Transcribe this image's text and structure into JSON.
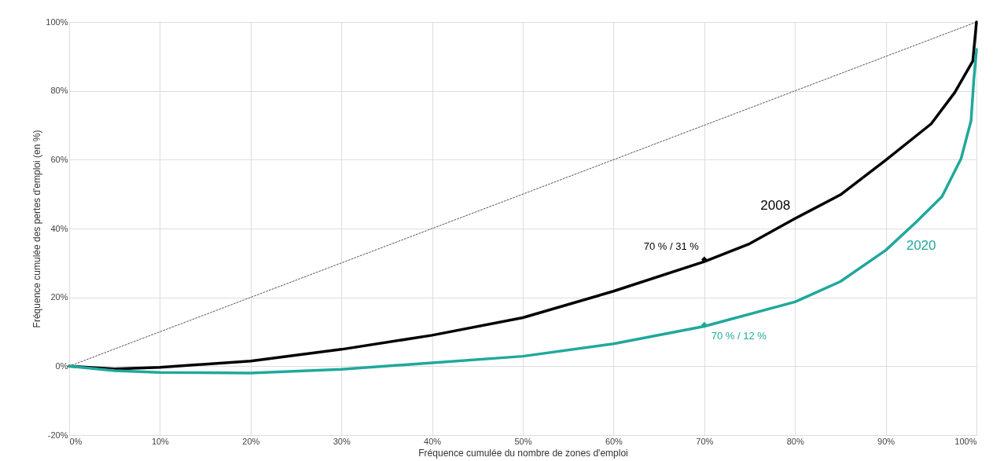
{
  "chart_data": {
    "type": "line",
    "xlabel": "Fréquence cumulée du nombre de zones d'emploi",
    "ylabel": "Fréquence cumulée des pertes d'emploi (en %)",
    "xlim": [
      0,
      100
    ],
    "ylim": [
      -20,
      100
    ],
    "xticks": [
      {
        "value": 0,
        "label": "0%"
      },
      {
        "value": 10,
        "label": "10%"
      },
      {
        "value": 20,
        "label": "20%"
      },
      {
        "value": 30,
        "label": "30%"
      },
      {
        "value": 40,
        "label": "40%"
      },
      {
        "value": 50,
        "label": "50%"
      },
      {
        "value": 60,
        "label": "60%"
      },
      {
        "value": 70,
        "label": "70%"
      },
      {
        "value": 80,
        "label": "80%"
      },
      {
        "value": 90,
        "label": "90%"
      },
      {
        "value": 100,
        "label": "100%"
      }
    ],
    "yticks": [
      {
        "value": -20,
        "label": "-20%"
      },
      {
        "value": 0,
        "label": "0%"
      },
      {
        "value": 20,
        "label": "20%"
      },
      {
        "value": 40,
        "label": "40%"
      },
      {
        "value": 60,
        "label": "60%"
      },
      {
        "value": 80,
        "label": "80%"
      },
      {
        "value": 100,
        "label": "100%"
      }
    ],
    "grid": true,
    "legend": false,
    "series": [
      {
        "color": "#555555",
        "line_style": "dotted",
        "x": [
          0,
          100
        ],
        "values": [
          0,
          100
        ]
      },
      {
        "name": "2008",
        "color": "#000000",
        "line_style": "solid",
        "x": [
          0,
          5,
          10,
          20,
          30,
          40,
          50,
          60,
          70,
          75,
          80,
          85,
          90,
          95,
          97.6,
          99.6,
          100
        ],
        "values": [
          0,
          -0.8,
          -0.3,
          1.5,
          4.9,
          9,
          14.1,
          21.8,
          30.4,
          35.6,
          42.9,
          49.8,
          59.9,
          70.4,
          79.5,
          88.7,
          100
        ]
      },
      {
        "name": "2020",
        "color": "#20a89c",
        "line_style": "solid",
        "x": [
          0,
          5,
          10,
          20,
          30,
          40,
          50,
          60,
          70,
          80,
          85,
          90,
          93.4,
          96.2,
          98.3,
          99.4,
          99.7,
          100
        ],
        "values": [
          0,
          -1.3,
          -1.8,
          -2,
          -0.9,
          1,
          2.9,
          6.5,
          11.6,
          18.7,
          24.6,
          33.7,
          42,
          49.3,
          60.3,
          71.3,
          83,
          92
        ]
      }
    ],
    "annotations": [
      {
        "text": "70 % / 31 %",
        "x": 70,
        "y": 31
      },
      {
        "text": "70 % / 12 %",
        "x": 70,
        "y": 12
      }
    ]
  }
}
